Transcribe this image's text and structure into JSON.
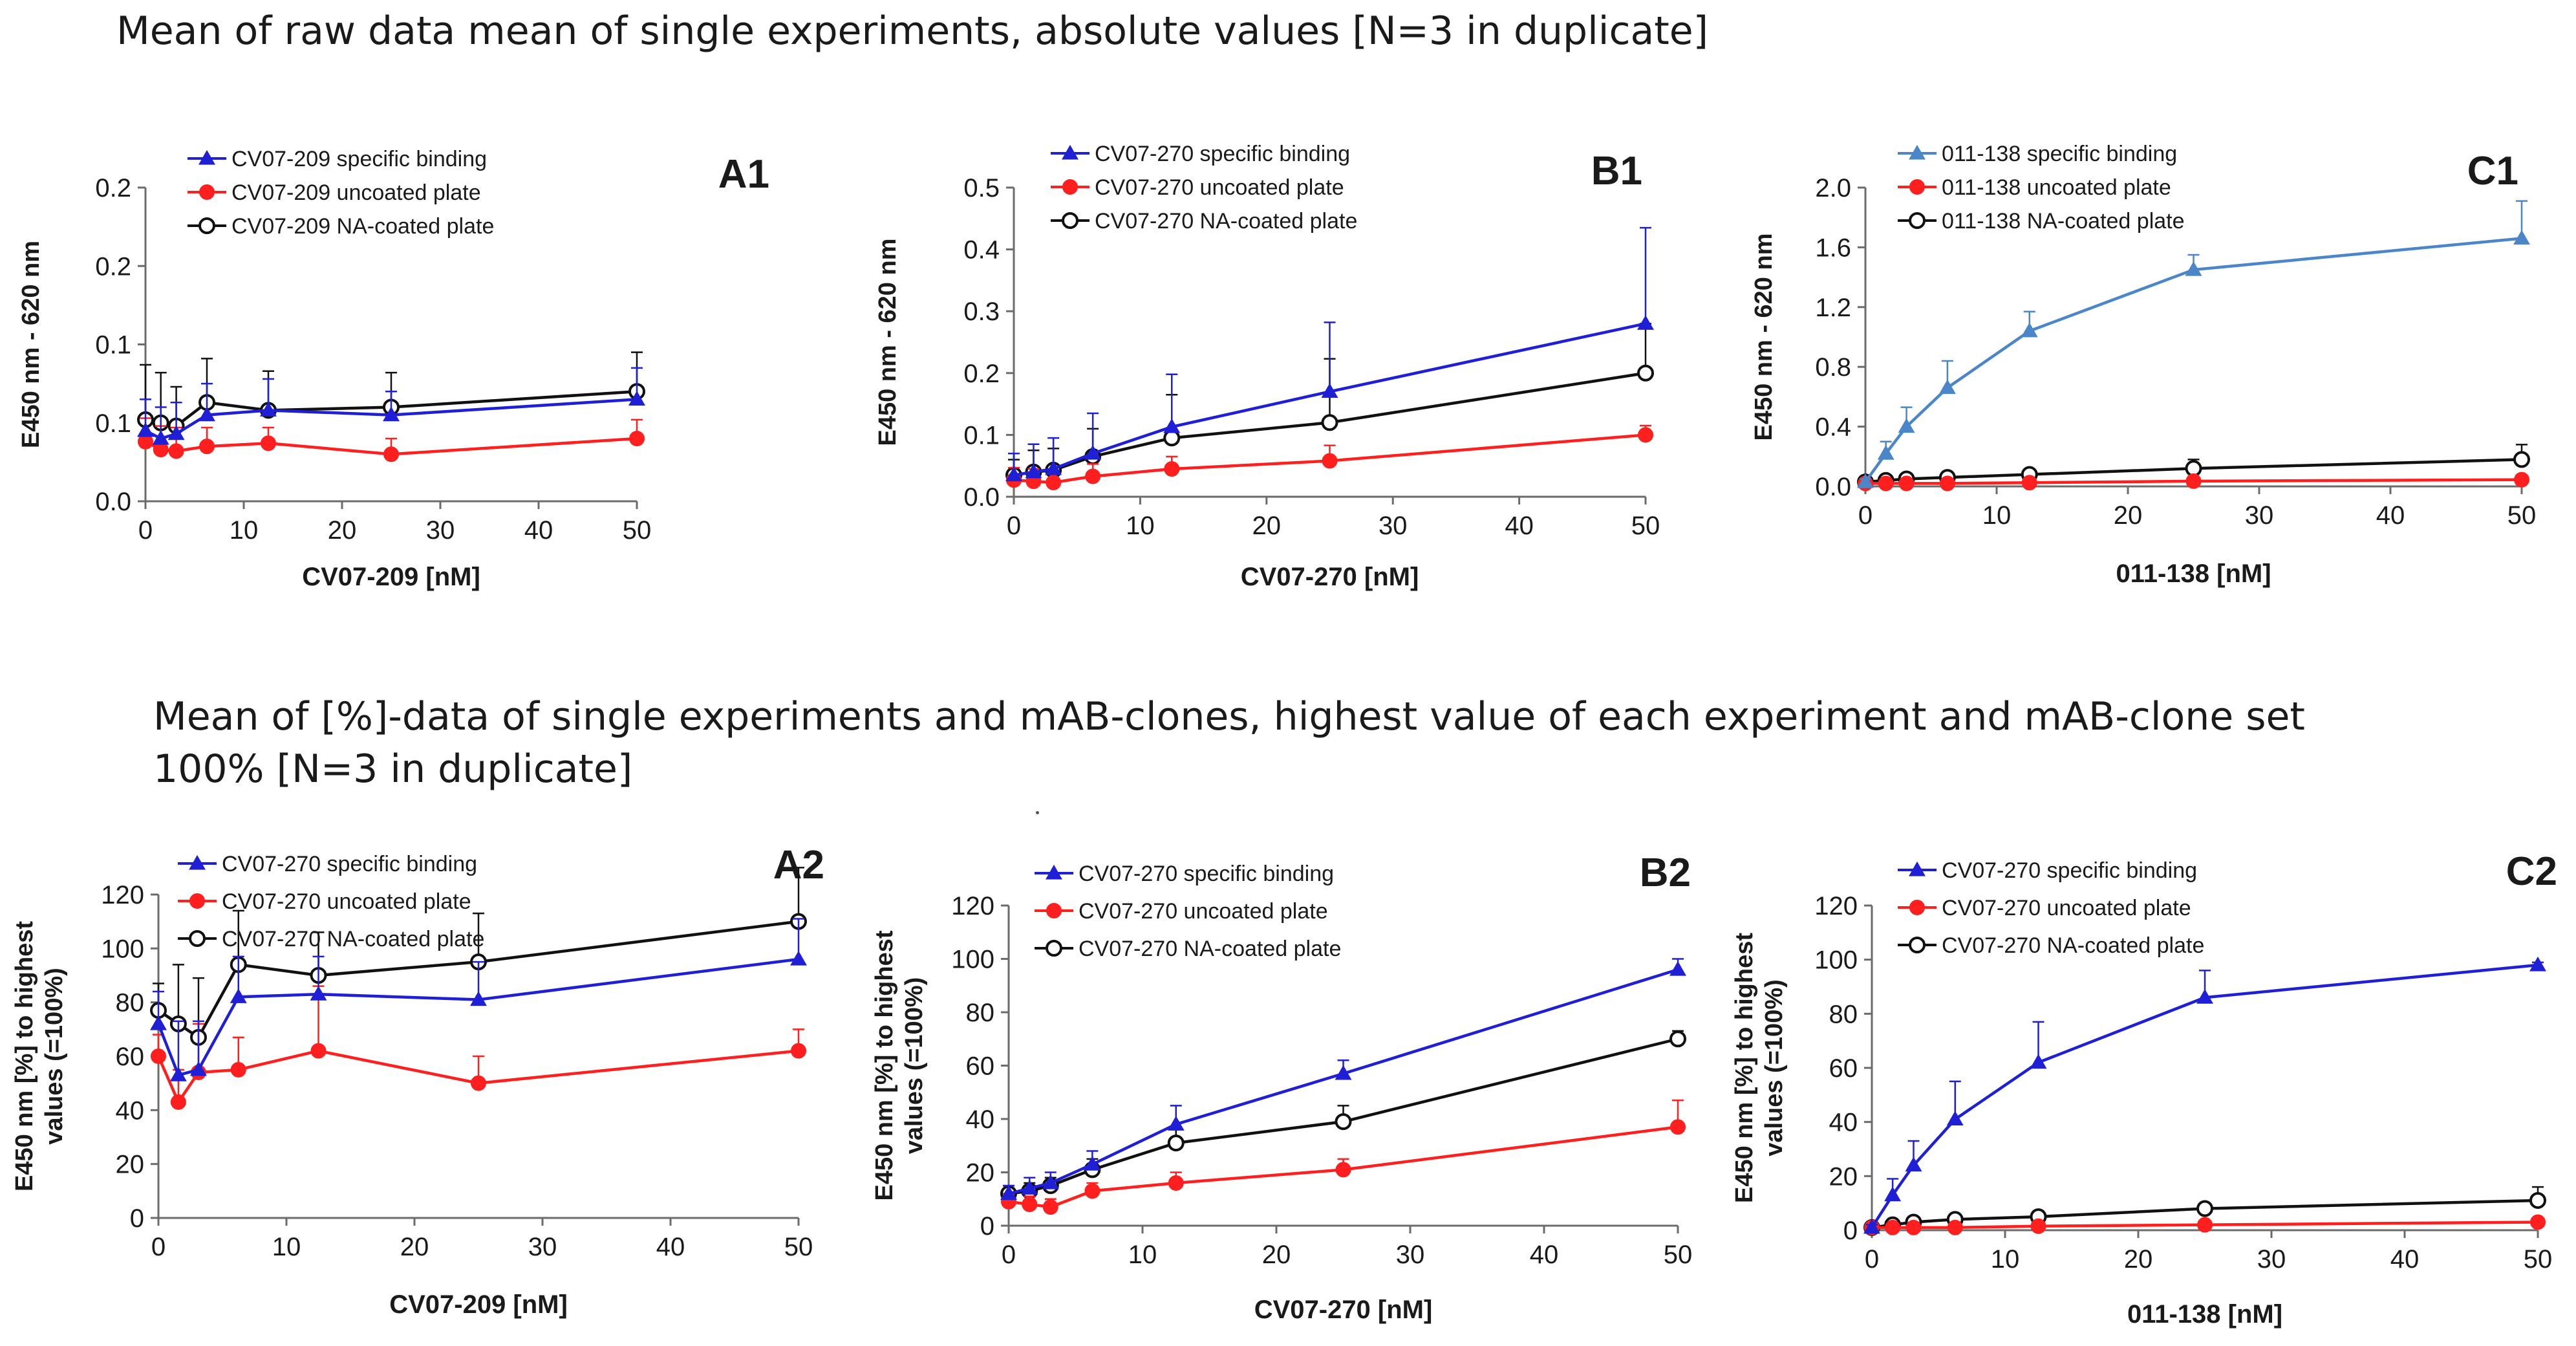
{
  "headings": {
    "top": "Mean of raw data mean of single experiments, absolute values [N=3 in duplicate]",
    "bottom": "Mean of [%]-data of single experiments and mAB-clones, highest value of each experiment and mAB-clone set 100% [N=3 in duplicate]"
  },
  "colors": {
    "specific": "#1f1fd6",
    "specific_c1": "#4a86c8",
    "uncoated": "#ff1f1f",
    "na_coated": "#111111"
  },
  "chart_data": [
    {
      "id": "A1",
      "type": "line",
      "panel_label": "A1",
      "xlabel": "CV07-209 [nM]",
      "ylabel": "E450 nm - 620 nm",
      "xlim": [
        0,
        50
      ],
      "ylim": [
        0,
        0.2
      ],
      "x_ticks": [
        0,
        10,
        20,
        30,
        40,
        50
      ],
      "y_ticks": [
        0,
        0.05,
        0.1,
        0.15,
        0.2
      ],
      "y_tick_labels": [
        "0.0",
        "0.1",
        "0.1",
        "0.2",
        "0.2"
      ],
      "x": [
        0,
        1.56,
        3.13,
        6.25,
        12.5,
        25,
        50
      ],
      "series": [
        {
          "name": "CV07-209 specific binding",
          "marker": "triangle",
          "color": "#1f1fd6",
          "values": [
            0.045,
            0.04,
            0.043,
            0.055,
            0.058,
            0.055,
            0.065
          ],
          "errors": [
            0.02,
            0.02,
            0.02,
            0.02,
            0.02,
            0.015,
            0.02
          ]
        },
        {
          "name": "CV07-209 uncoated plate",
          "marker": "circle-filled",
          "color": "#ff1f1f",
          "values": [
            0.038,
            0.033,
            0.032,
            0.035,
            0.037,
            0.03,
            0.04
          ],
          "errors": [
            0.015,
            0.015,
            0.015,
            0.012,
            0.01,
            0.01,
            0.012
          ]
        },
        {
          "name": "CV07-209 NA-coated plate",
          "marker": "circle-open",
          "color": "#111111",
          "values": [
            0.052,
            0.05,
            0.048,
            0.063,
            0.058,
            0.06,
            0.07
          ],
          "errors": [
            0.035,
            0.032,
            0.025,
            0.028,
            0.025,
            0.022,
            0.025
          ]
        }
      ]
    },
    {
      "id": "B1",
      "type": "line",
      "panel_label": "B1",
      "xlabel": "CV07-270 [nM]",
      "ylabel": "E450 nm - 620 nm",
      "xlim": [
        0,
        50
      ],
      "ylim": [
        0,
        0.5
      ],
      "x_ticks": [
        0,
        10,
        20,
        30,
        40,
        50
      ],
      "y_ticks": [
        0,
        0.1,
        0.2,
        0.3,
        0.4,
        0.5
      ],
      "y_tick_labels": [
        "0.0",
        "0.1",
        "0.2",
        "0.3",
        "0.4",
        "0.5"
      ],
      "x": [
        0,
        1.56,
        3.13,
        6.25,
        12.5,
        25,
        50
      ],
      "series": [
        {
          "name": "CV07-270 specific binding",
          "marker": "triangle",
          "color": "#1f1fd6",
          "values": [
            0.035,
            0.04,
            0.045,
            0.07,
            0.113,
            0.17,
            0.28
          ],
          "errors": [
            0.035,
            0.045,
            0.05,
            0.065,
            0.085,
            0.112,
            0.155
          ]
        },
        {
          "name": "CV07-270 uncoated plate",
          "marker": "circle-filled",
          "color": "#ff1f1f",
          "values": [
            0.027,
            0.025,
            0.023,
            0.033,
            0.045,
            0.058,
            0.1
          ],
          "errors": [
            0.02,
            0.02,
            0.02,
            0.02,
            0.02,
            0.025,
            0.015
          ]
        },
        {
          "name": "CV07-270 NA-coated plate",
          "marker": "circle-open",
          "color": "#111111",
          "values": [
            0.035,
            0.04,
            0.043,
            0.065,
            0.095,
            0.12,
            0.2
          ],
          "errors": [
            0.025,
            0.035,
            0.035,
            0.045,
            0.07,
            0.103,
            0.08
          ]
        }
      ]
    },
    {
      "id": "C1",
      "type": "line",
      "panel_label": "C1",
      "xlabel": "011-138 [nM]",
      "ylabel": "E450 nm - 620 nm",
      "xlim": [
        0,
        50
      ],
      "ylim": [
        0,
        2.0
      ],
      "x_ticks": [
        0,
        10,
        20,
        30,
        40,
        50
      ],
      "y_ticks": [
        0,
        0.4,
        0.8,
        1.2,
        1.6,
        2.0
      ],
      "y_tick_labels": [
        "0.0",
        "0.4",
        "0.8",
        "1.2",
        "1.6",
        "2.0"
      ],
      "x": [
        0,
        1.56,
        3.13,
        6.25,
        12.5,
        25,
        50
      ],
      "series": [
        {
          "name": "011-138 specific binding",
          "marker": "triangle",
          "color": "#4a86c8",
          "values": [
            0.03,
            0.22,
            0.4,
            0.66,
            1.04,
            1.45,
            1.66
          ],
          "errors": [
            0.02,
            0.08,
            0.13,
            0.18,
            0.13,
            0.1,
            0.25
          ]
        },
        {
          "name": "011-138 uncoated plate",
          "marker": "circle-filled",
          "color": "#ff1f1f",
          "values": [
            0.02,
            0.02,
            0.02,
            0.02,
            0.025,
            0.035,
            0.045
          ],
          "errors": [
            0,
            0,
            0,
            0,
            0,
            0,
            0
          ]
        },
        {
          "name": "011-138 NA-coated plate",
          "marker": "circle-open",
          "color": "#111111",
          "values": [
            0.03,
            0.04,
            0.05,
            0.06,
            0.08,
            0.12,
            0.18
          ],
          "errors": [
            0,
            0,
            0,
            0.02,
            0.02,
            0.06,
            0.1
          ]
        }
      ]
    },
    {
      "id": "A2",
      "type": "line",
      "panel_label": "A2",
      "xlabel": "CV07-209 [nM]",
      "ylabel": "E450 nm [%] to highest values (=100%)",
      "xlim": [
        0,
        50
      ],
      "ylim": [
        0,
        120
      ],
      "x_ticks": [
        0,
        10,
        20,
        30,
        40,
        50
      ],
      "y_ticks": [
        0,
        20,
        40,
        60,
        80,
        100,
        120
      ],
      "y_tick_labels": [
        "0",
        "20",
        "40",
        "60",
        "80",
        "100",
        "120"
      ],
      "x": [
        0,
        1.56,
        3.13,
        6.25,
        12.5,
        25,
        50
      ],
      "series": [
        {
          "name": "CV07-270 specific binding",
          "marker": "triangle",
          "color": "#1f1fd6",
          "values": [
            72,
            53,
            55,
            82,
            83,
            81,
            96
          ],
          "errors": [
            12,
            20,
            18,
            15,
            14,
            14,
            15
          ]
        },
        {
          "name": "CV07-270 uncoated plate",
          "marker": "circle-filled",
          "color": "#ff1f1f",
          "values": [
            60,
            43,
            54,
            55,
            62,
            50,
            62
          ],
          "errors": [
            8,
            12,
            18,
            12,
            24,
            10,
            8
          ]
        },
        {
          "name": "CV07-270 NA-coated plate",
          "marker": "circle-open",
          "color": "#111111",
          "values": [
            77,
            72,
            67,
            94,
            90,
            95,
            110
          ],
          "errors": [
            10,
            22,
            22,
            20,
            16,
            18,
            20
          ]
        }
      ]
    },
    {
      "id": "B2",
      "type": "line",
      "panel_label": "B2",
      "xlabel": "CV07-270 [nM]",
      "ylabel": "E450 nm [%] to highest values (=100%)",
      "xlim": [
        0,
        50
      ],
      "ylim": [
        0,
        120
      ],
      "x_ticks": [
        0,
        10,
        20,
        30,
        40,
        50
      ],
      "y_ticks": [
        0,
        20,
        40,
        60,
        80,
        100,
        120
      ],
      "y_tick_labels": [
        "0",
        "20",
        "40",
        "60",
        "80",
        "100",
        "120"
      ],
      "x": [
        0,
        1.56,
        3.13,
        6.25,
        12.5,
        25,
        50
      ],
      "series": [
        {
          "name": "CV07-270 specific binding",
          "marker": "triangle",
          "color": "#1f1fd6",
          "values": [
            12,
            14,
            16,
            23,
            38,
            57,
            96
          ],
          "errors": [
            3,
            4,
            4,
            5,
            7,
            5,
            4
          ]
        },
        {
          "name": "CV07-270 uncoated plate",
          "marker": "circle-filled",
          "color": "#ff1f1f",
          "values": [
            9,
            8,
            7,
            13,
            16,
            21,
            37
          ],
          "errors": [
            3,
            3,
            3,
            3,
            4,
            4,
            10
          ]
        },
        {
          "name": "CV07-270 NA-coated plate",
          "marker": "circle-open",
          "color": "#111111",
          "values": [
            12,
            13,
            15,
            21,
            31,
            39,
            70
          ],
          "errors": [
            3,
            3,
            3,
            4,
            5,
            6,
            3
          ]
        }
      ]
    },
    {
      "id": "C2",
      "type": "line",
      "panel_label": "C2",
      "xlabel": "011-138 [nM]",
      "ylabel": "E450 nm [%] to highest values (=100%)",
      "xlim": [
        0,
        50
      ],
      "ylim": [
        0,
        120
      ],
      "x_ticks": [
        0,
        10,
        20,
        30,
        40,
        50
      ],
      "y_ticks": [
        0,
        20,
        40,
        60,
        80,
        100,
        120
      ],
      "y_tick_labels": [
        "0",
        "20",
        "40",
        "60",
        "80",
        "100",
        "120"
      ],
      "x": [
        0,
        1.56,
        3.13,
        6.25,
        12.5,
        25,
        50
      ],
      "series": [
        {
          "name": "CV07-270 specific binding",
          "marker": "triangle",
          "color": "#1f1fd6",
          "values": [
            1,
            13,
            24,
            41,
            62,
            86,
            98
          ],
          "errors": [
            1,
            6,
            9,
            14,
            15,
            10,
            1
          ]
        },
        {
          "name": "CV07-270 uncoated plate",
          "marker": "circle-filled",
          "color": "#ff1f1f",
          "values": [
            1,
            1,
            1,
            1,
            1.5,
            2,
            3
          ],
          "errors": [
            0,
            0,
            0,
            0,
            0,
            0,
            0
          ]
        },
        {
          "name": "CV07-270 NA-coated plate",
          "marker": "circle-open",
          "color": "#111111",
          "values": [
            1,
            2,
            3,
            4,
            5,
            8,
            11
          ],
          "errors": [
            0,
            0,
            0,
            1,
            1,
            2,
            5
          ]
        }
      ]
    }
  ]
}
